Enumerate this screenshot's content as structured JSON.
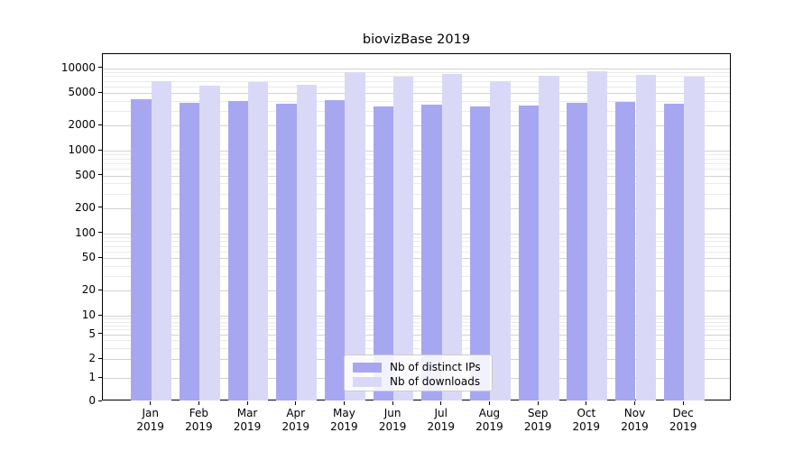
{
  "chart_data": {
    "type": "bar",
    "title": "biovizBase 2019",
    "months": [
      "Jan",
      "Feb",
      "Mar",
      "Apr",
      "May",
      "Jun",
      "Jul",
      "Aug",
      "Sep",
      "Oct",
      "Nov",
      "Dec"
    ],
    "year": "2019",
    "series": [
      {
        "name": "Nb of distinct IPs",
        "color": "#a7a7f1",
        "values": [
          4200,
          3800,
          4000,
          3700,
          4100,
          3400,
          3600,
          3400,
          3500,
          3800,
          3900,
          3700
        ]
      },
      {
        "name": "Nb of downloads",
        "color": "#d9d9f7",
        "values": [
          7000,
          6100,
          6800,
          6200,
          9000,
          7900,
          8500,
          6900,
          8100,
          9100,
          8300,
          7800
        ]
      }
    ],
    "y_axis": {
      "scale": "symlog",
      "tick_values": [
        0,
        1,
        2,
        5,
        10,
        20,
        50,
        100,
        200,
        500,
        1000,
        2000,
        5000,
        10000
      ],
      "tick_labels": [
        "0",
        "1",
        "2",
        "5",
        "10",
        "20",
        "50",
        "100",
        "200",
        "500",
        "1000",
        "2000",
        "5000",
        "10000"
      ],
      "range_max": 10000
    },
    "legend": {
      "position": "lower center",
      "entries": [
        "Nb of distinct IPs",
        "Nb of downloads"
      ]
    },
    "grid": true,
    "background_color": "#ffffff"
  }
}
